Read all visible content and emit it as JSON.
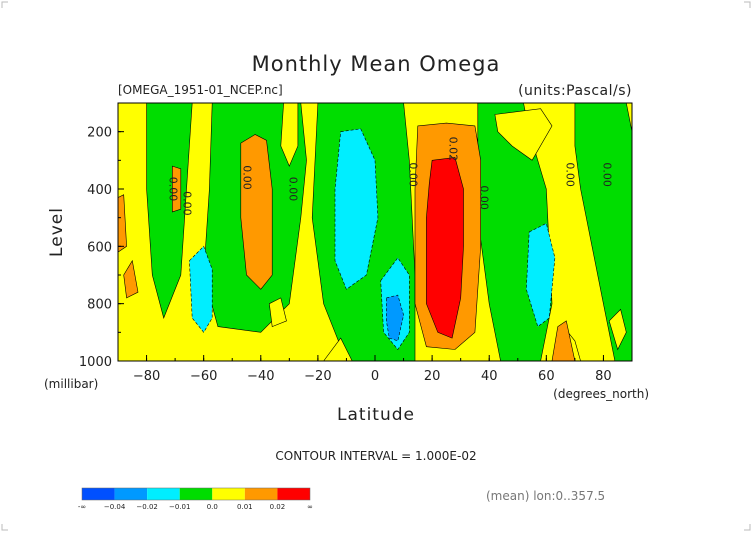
{
  "page": {
    "title": "Monthly Mean Omega",
    "file_label": "[OMEGA_1951-01_NCEP.nc]",
    "units_label": "(units:Pascal/s)",
    "contour_interval": "CONTOUR INTERVAL = 1.000E-02",
    "footnote": "(mean) lon:0..357.5"
  },
  "chart_data": {
    "type": "heatmap",
    "title": "Monthly Mean Omega",
    "xlabel": "Latitude",
    "xunit": "(degrees_north)",
    "ylabel": "Level",
    "yunit": "(millibar)",
    "xlim": [
      -90,
      90
    ],
    "ylim": [
      1000,
      100
    ],
    "x_ticks": [
      -80,
      -60,
      -40,
      -20,
      0,
      20,
      40,
      60,
      80
    ],
    "x_tick_labels": [
      "−80",
      "−60",
      "−40",
      "−20",
      "0",
      "20",
      "40",
      "60",
      "80"
    ],
    "y_ticks": [
      200,
      400,
      600,
      800,
      1000
    ],
    "y_tick_labels": [
      "200",
      "400",
      "600",
      "800",
      "1000"
    ],
    "contour_labels": [
      {
        "text": "0.00",
        "lat": -72,
        "lev": 400
      },
      {
        "text": "0.00",
        "lat": -67,
        "lev": 450
      },
      {
        "text": "0.00",
        "lat": -46,
        "lev": 360
      },
      {
        "text": "0.00",
        "lat": -30,
        "lev": 400
      },
      {
        "text": "0.00",
        "lat": 12,
        "lev": 350
      },
      {
        "text": "0.02",
        "lat": 26,
        "lev": 260
      },
      {
        "text": "0.00",
        "lat": 37,
        "lev": 430
      },
      {
        "text": "0.00",
        "lat": 67,
        "lev": 350
      },
      {
        "text": "0.00",
        "lat": 80,
        "lev": 350
      }
    ],
    "colorbar": {
      "colors": [
        "#0050ff",
        "#0099ff",
        "#00eeff",
        "#00dd00",
        "#ffff00",
        "#ff9900",
        "#ff0000"
      ],
      "labels": [
        "-∞",
        "−0.04",
        "−0.02",
        "−0.01",
        "0.0",
        "0.01",
        "0.02",
        "∞"
      ]
    },
    "regions": [
      {
        "level": 1,
        "points": [
          [
            -90,
            100
          ],
          [
            90,
            100
          ],
          [
            90,
            1000
          ],
          [
            -90,
            1000
          ]
        ]
      },
      {
        "level": 0,
        "points": [
          [
            -80,
            100
          ],
          [
            -64,
            100
          ],
          [
            -66,
            400
          ],
          [
            -68,
            700
          ],
          [
            -74,
            850
          ],
          [
            -78,
            700
          ],
          [
            -80,
            400
          ]
        ]
      },
      {
        "level": 0,
        "points": [
          [
            -57,
            100
          ],
          [
            -26,
            100
          ],
          [
            -24,
            300
          ],
          [
            -26,
            500
          ],
          [
            -30,
            800
          ],
          [
            -40,
            900
          ],
          [
            -55,
            880
          ],
          [
            -60,
            700
          ],
          [
            -58,
            400
          ]
        ]
      },
      {
        "level": 0,
        "points": [
          [
            -20,
            100
          ],
          [
            10,
            100
          ],
          [
            12,
            300
          ],
          [
            14,
            700
          ],
          [
            14,
            1000
          ],
          [
            -10,
            1000
          ],
          [
            -18,
            800
          ],
          [
            -22,
            500
          ]
        ]
      },
      {
        "level": 0,
        "points": [
          [
            36,
            100
          ],
          [
            52,
            100
          ],
          [
            54,
            200
          ],
          [
            60,
            400
          ],
          [
            62,
            800
          ],
          [
            58,
            1000
          ],
          [
            44,
            1000
          ],
          [
            40,
            800
          ],
          [
            36,
            500
          ],
          [
            36,
            300
          ]
        ]
      },
      {
        "level": 0,
        "points": [
          [
            70,
            100
          ],
          [
            88,
            100
          ],
          [
            90,
            200
          ],
          [
            90,
            1000
          ],
          [
            84,
            1000
          ],
          [
            80,
            800
          ],
          [
            76,
            600
          ],
          [
            72,
            400
          ],
          [
            70,
            250
          ]
        ]
      },
      {
        "level": 1,
        "points": [
          [
            -32,
            100
          ],
          [
            -27,
            100
          ],
          [
            -27,
            250
          ],
          [
            -30,
            320
          ],
          [
            -33,
            250
          ]
        ]
      },
      {
        "level": 1,
        "points": [
          [
            -37,
            800
          ],
          [
            -33,
            780
          ],
          [
            -31,
            860
          ],
          [
            -36,
            880
          ]
        ]
      },
      {
        "level": 1,
        "points": [
          [
            -18,
            1000
          ],
          [
            -12,
            920
          ],
          [
            -8,
            1000
          ]
        ]
      },
      {
        "level": 1,
        "points": [
          [
            42,
            140
          ],
          [
            58,
            120
          ],
          [
            62,
            180
          ],
          [
            55,
            300
          ],
          [
            48,
            250
          ],
          [
            43,
            200
          ]
        ]
      },
      {
        "level": 1,
        "points": [
          [
            63,
            1000
          ],
          [
            66,
            880
          ],
          [
            70,
            930
          ],
          [
            72,
            1000
          ]
        ]
      },
      {
        "level": 1,
        "points": [
          [
            82,
            860
          ],
          [
            86,
            820
          ],
          [
            88,
            900
          ],
          [
            85,
            960
          ]
        ]
      },
      {
        "level": -1,
        "points": [
          [
            -65,
            650
          ],
          [
            -60,
            600
          ],
          [
            -57,
            680
          ],
          [
            -57,
            850
          ],
          [
            -60,
            900
          ],
          [
            -64,
            850
          ]
        ]
      },
      {
        "level": -1,
        "points": [
          [
            -12,
            200
          ],
          [
            -5,
            190
          ],
          [
            0,
            300
          ],
          [
            1,
            500
          ],
          [
            -3,
            700
          ],
          [
            -10,
            750
          ],
          [
            -14,
            650
          ],
          [
            -14,
            400
          ]
        ]
      },
      {
        "level": -1,
        "points": [
          [
            2,
            720
          ],
          [
            8,
            640
          ],
          [
            12,
            700
          ],
          [
            12,
            900
          ],
          [
            8,
            960
          ],
          [
            3,
            900
          ]
        ]
      },
      {
        "level": -1,
        "points": [
          [
            54,
            550
          ],
          [
            60,
            520
          ],
          [
            63,
            640
          ],
          [
            61,
            850
          ],
          [
            57,
            880
          ],
          [
            53,
            750
          ]
        ]
      },
      {
        "level": -2,
        "points": [
          [
            4,
            780
          ],
          [
            8,
            770
          ],
          [
            10,
            840
          ],
          [
            8,
            930
          ],
          [
            5,
            920
          ],
          [
            4,
            860
          ]
        ]
      },
      {
        "level": 2,
        "points": [
          [
            -71,
            320
          ],
          [
            -68,
            330
          ],
          [
            -68,
            470
          ],
          [
            -71,
            480
          ]
        ]
      },
      {
        "level": 2,
        "points": [
          [
            -88,
            700
          ],
          [
            -85,
            650
          ],
          [
            -83,
            760
          ],
          [
            -87,
            780
          ]
        ]
      },
      {
        "level": 2,
        "points": [
          [
            -47,
            240
          ],
          [
            -42,
            210
          ],
          [
            -38,
            230
          ],
          [
            -36,
            400
          ],
          [
            -36,
            700
          ],
          [
            -40,
            750
          ],
          [
            -45,
            700
          ],
          [
            -47,
            500
          ]
        ]
      },
      {
        "level": 2,
        "points": [
          [
            15,
            180
          ],
          [
            25,
            170
          ],
          [
            35,
            180
          ],
          [
            37,
            300
          ],
          [
            37,
            600
          ],
          [
            35,
            900
          ],
          [
            28,
            960
          ],
          [
            18,
            950
          ],
          [
            14,
            800
          ],
          [
            14,
            400
          ]
        ]
      },
      {
        "level": 2,
        "points": [
          [
            -90,
            430
          ],
          [
            -88,
            420
          ],
          [
            -87,
            600
          ],
          [
            -90,
            620
          ]
        ]
      },
      {
        "level": 2,
        "points": [
          [
            64,
            880
          ],
          [
            67,
            860
          ],
          [
            70,
            1000
          ],
          [
            62,
            1000
          ]
        ]
      },
      {
        "level": 3,
        "points": [
          [
            20,
            300
          ],
          [
            28,
            290
          ],
          [
            31,
            400
          ],
          [
            31,
            600
          ],
          [
            30,
            780
          ],
          [
            27,
            920
          ],
          [
            22,
            900
          ],
          [
            18,
            800
          ],
          [
            18,
            500
          ],
          [
            19,
            380
          ]
        ]
      }
    ]
  }
}
